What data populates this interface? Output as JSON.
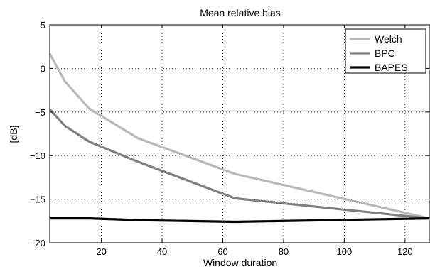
{
  "chart_data": {
    "type": "line",
    "title": "Mean relative bias",
    "xlabel": "Window duration",
    "ylabel": "[dB]",
    "xlim": [
      3,
      128
    ],
    "ylim": [
      -20,
      5
    ],
    "xticks": [
      20,
      40,
      60,
      80,
      100,
      120
    ],
    "yticks": [
      5,
      0,
      -5,
      -10,
      -15,
      -20
    ],
    "xtick_labels": [
      "20",
      "40",
      "60",
      "80",
      "100",
      "120"
    ],
    "ytick_labels": [
      "5",
      "0",
      "−5",
      "−10",
      "−15",
      "−20"
    ],
    "grid": true,
    "legend_position": "top-right",
    "series": [
      {
        "name": "Welch",
        "color": "#b8b8b8",
        "x": [
          3,
          8,
          16,
          32,
          64,
          128
        ],
        "y": [
          1.7,
          -1.5,
          -4.6,
          -8.0,
          -12.1,
          -17.2
        ]
      },
      {
        "name": "BPC",
        "color": "#7f7f7f",
        "x": [
          3,
          8,
          16,
          32,
          64,
          128
        ],
        "y": [
          -4.7,
          -6.6,
          -8.4,
          -10.7,
          -14.9,
          -17.2
        ]
      },
      {
        "name": "BAPES",
        "color": "#000000",
        "x": [
          3,
          8,
          16,
          32,
          64,
          128
        ],
        "y": [
          -17.2,
          -17.2,
          -17.2,
          -17.4,
          -17.6,
          -17.2
        ]
      }
    ]
  }
}
